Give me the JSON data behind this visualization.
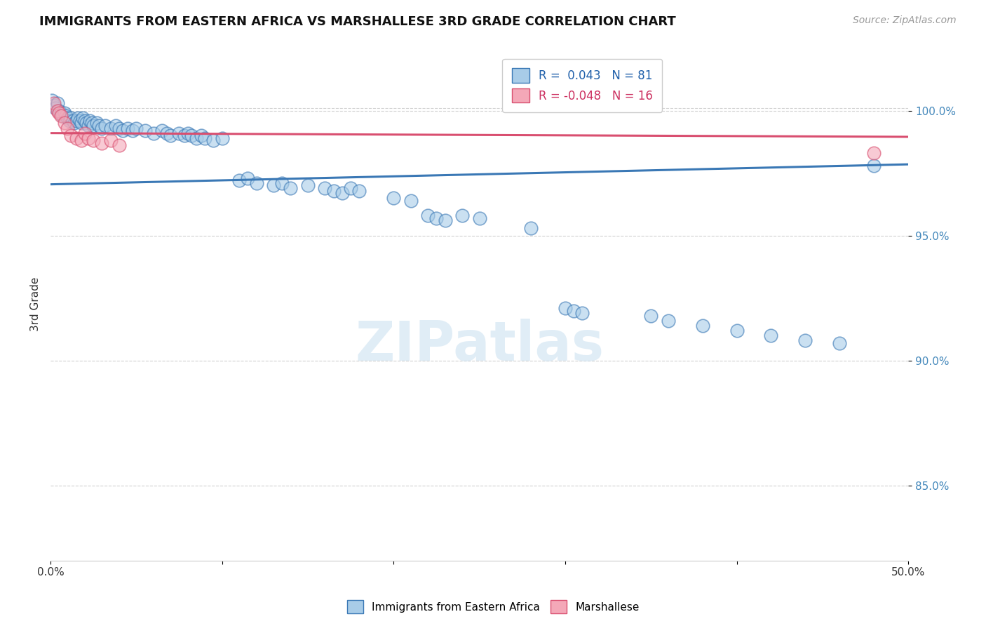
{
  "title": "IMMIGRANTS FROM EASTERN AFRICA VS MARSHALLESE 3RD GRADE CORRELATION CHART",
  "source": "Source: ZipAtlas.com",
  "xlabel": "",
  "ylabel": "3rd Grade",
  "xlim": [
    0.0,
    0.5
  ],
  "ylim": [
    0.82,
    1.025
  ],
  "yticks": [
    0.85,
    0.9,
    0.95,
    1.0
  ],
  "ytick_labels": [
    "85.0%",
    "90.0%",
    "95.0%",
    "100.0%"
  ],
  "xticks": [
    0.0,
    0.1,
    0.2,
    0.3,
    0.4,
    0.5
  ],
  "xtick_labels": [
    "0.0%",
    "",
    "",
    "",
    "",
    "50.0%"
  ],
  "legend_r_blue": "0.043",
  "legend_n_blue": "81",
  "legend_r_pink": "-0.048",
  "legend_n_pink": "16",
  "blue_color": "#a8cce8",
  "pink_color": "#f4a8b8",
  "blue_line_color": "#3a78b5",
  "pink_line_color": "#d94f70",
  "background_color": "#ffffff",
  "grid_color": "#d0d0d0",
  "blue_dots": [
    [
      0.001,
      1.004
    ],
    [
      0.002,
      1.002
    ],
    [
      0.003,
      1.001
    ],
    [
      0.004,
      1.003
    ],
    [
      0.005,
      1.0
    ],
    [
      0.006,
      0.999
    ],
    [
      0.007,
      0.998
    ],
    [
      0.008,
      0.999
    ],
    [
      0.009,
      0.998
    ],
    [
      0.01,
      0.997
    ],
    [
      0.011,
      0.996
    ],
    [
      0.012,
      0.997
    ],
    [
      0.013,
      0.996
    ],
    [
      0.014,
      0.995
    ],
    [
      0.015,
      0.996
    ],
    [
      0.016,
      0.997
    ],
    [
      0.017,
      0.996
    ],
    [
      0.018,
      0.995
    ],
    [
      0.019,
      0.997
    ],
    [
      0.02,
      0.996
    ],
    [
      0.021,
      0.995
    ],
    [
      0.022,
      0.994
    ],
    [
      0.023,
      0.996
    ],
    [
      0.024,
      0.995
    ],
    [
      0.025,
      0.994
    ],
    [
      0.027,
      0.995
    ],
    [
      0.028,
      0.994
    ],
    [
      0.03,
      0.993
    ],
    [
      0.032,
      0.994
    ],
    [
      0.035,
      0.993
    ],
    [
      0.038,
      0.994
    ],
    [
      0.04,
      0.993
    ],
    [
      0.042,
      0.992
    ],
    [
      0.045,
      0.993
    ],
    [
      0.048,
      0.992
    ],
    [
      0.05,
      0.993
    ],
    [
      0.055,
      0.992
    ],
    [
      0.06,
      0.991
    ],
    [
      0.065,
      0.992
    ],
    [
      0.068,
      0.991
    ],
    [
      0.07,
      0.99
    ],
    [
      0.075,
      0.991
    ],
    [
      0.078,
      0.99
    ],
    [
      0.08,
      0.991
    ],
    [
      0.082,
      0.99
    ],
    [
      0.085,
      0.989
    ],
    [
      0.088,
      0.99
    ],
    [
      0.09,
      0.989
    ],
    [
      0.095,
      0.988
    ],
    [
      0.1,
      0.989
    ],
    [
      0.11,
      0.972
    ],
    [
      0.115,
      0.973
    ],
    [
      0.12,
      0.971
    ],
    [
      0.13,
      0.97
    ],
    [
      0.135,
      0.971
    ],
    [
      0.14,
      0.969
    ],
    [
      0.15,
      0.97
    ],
    [
      0.16,
      0.969
    ],
    [
      0.165,
      0.968
    ],
    [
      0.17,
      0.967
    ],
    [
      0.175,
      0.969
    ],
    [
      0.18,
      0.968
    ],
    [
      0.2,
      0.965
    ],
    [
      0.21,
      0.964
    ],
    [
      0.22,
      0.958
    ],
    [
      0.225,
      0.957
    ],
    [
      0.23,
      0.956
    ],
    [
      0.24,
      0.958
    ],
    [
      0.25,
      0.957
    ],
    [
      0.28,
      0.953
    ],
    [
      0.3,
      0.921
    ],
    [
      0.305,
      0.92
    ],
    [
      0.31,
      0.919
    ],
    [
      0.35,
      0.918
    ],
    [
      0.36,
      0.916
    ],
    [
      0.38,
      0.914
    ],
    [
      0.4,
      0.912
    ],
    [
      0.42,
      0.91
    ],
    [
      0.44,
      0.908
    ],
    [
      0.46,
      0.907
    ],
    [
      0.48,
      0.978
    ]
  ],
  "pink_dots": [
    [
      0.002,
      1.003
    ],
    [
      0.004,
      1.0
    ],
    [
      0.005,
      0.999
    ],
    [
      0.006,
      0.998
    ],
    [
      0.008,
      0.995
    ],
    [
      0.01,
      0.993
    ],
    [
      0.012,
      0.99
    ],
    [
      0.015,
      0.989
    ],
    [
      0.018,
      0.988
    ],
    [
      0.02,
      0.991
    ],
    [
      0.022,
      0.989
    ],
    [
      0.025,
      0.988
    ],
    [
      0.03,
      0.987
    ],
    [
      0.035,
      0.988
    ],
    [
      0.04,
      0.986
    ],
    [
      0.48,
      0.983
    ]
  ],
  "blue_trend": [
    0.9705,
    0.9785
  ],
  "pink_trend": [
    0.991,
    0.9895
  ],
  "dashed_line_y": 0.9785
}
